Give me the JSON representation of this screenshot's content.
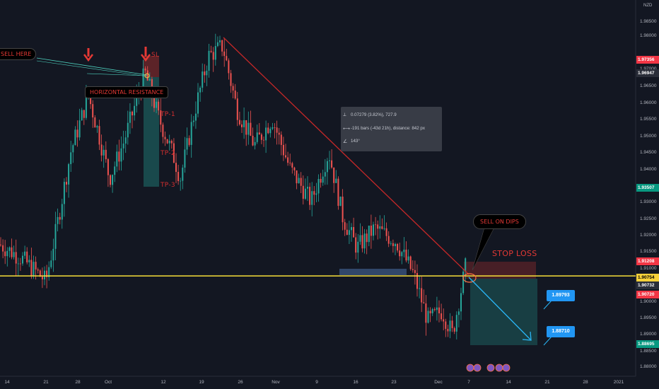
{
  "chart_data": {
    "type": "candlestick",
    "currency": "NZD",
    "price_axis_ticks": [
      "1.98500",
      "1.98000",
      "1.97000",
      "1.96500",
      "1.96000",
      "1.95500",
      "1.95000",
      "1.94500",
      "1.94000",
      "1.93000",
      "1.92500",
      "1.92000",
      "1.91500",
      "1.91000",
      "1.90000",
      "1.89500",
      "1.89000",
      "1.88500",
      "1.88000"
    ],
    "time_axis_ticks": [
      "14",
      "21",
      "28",
      "Oct",
      "12",
      "19",
      "26",
      "Nov",
      "9",
      "16",
      "23",
      "Dec",
      "7",
      "14",
      "21",
      "28",
      "2021"
    ],
    "price_badges": [
      {
        "text": "1.97356",
        "color": "#f23645"
      },
      {
        "text": "1.96947",
        "color": "#2a2e39"
      },
      {
        "text": "1.93507",
        "color": "#089981"
      },
      {
        "text": "1.91208",
        "color": "#f23645"
      },
      {
        "text": "1.90754",
        "color": "#f7d13a"
      },
      {
        "text": "1.90732",
        "color": "#2a2e39"
      },
      {
        "text": "1.90720",
        "color": "#f23645"
      },
      {
        "text": "1.88695",
        "color": "#089981"
      }
    ],
    "horizontal_line": {
      "price": 1.90754,
      "color": "#f7e03a"
    },
    "annotations": {
      "sell_here": "SELL HERE",
      "horizontal_resistance": "HORIZONTAL RESISTANCE",
      "sl": "SL",
      "tp1": "TP-1",
      "tp2": "TP-2",
      "tp3": "TP-3",
      "sell_on_dips": "SELL ON DIPS",
      "stop_loss": "STOP LOSS"
    },
    "measure": {
      "line1": "0.07279 (3.82%), 727.9",
      "line2": "-191 bars (-43d 21h), distance: 842 px",
      "line3": "143°"
    },
    "targets": [
      "1.89793",
      "1.88710"
    ]
  }
}
